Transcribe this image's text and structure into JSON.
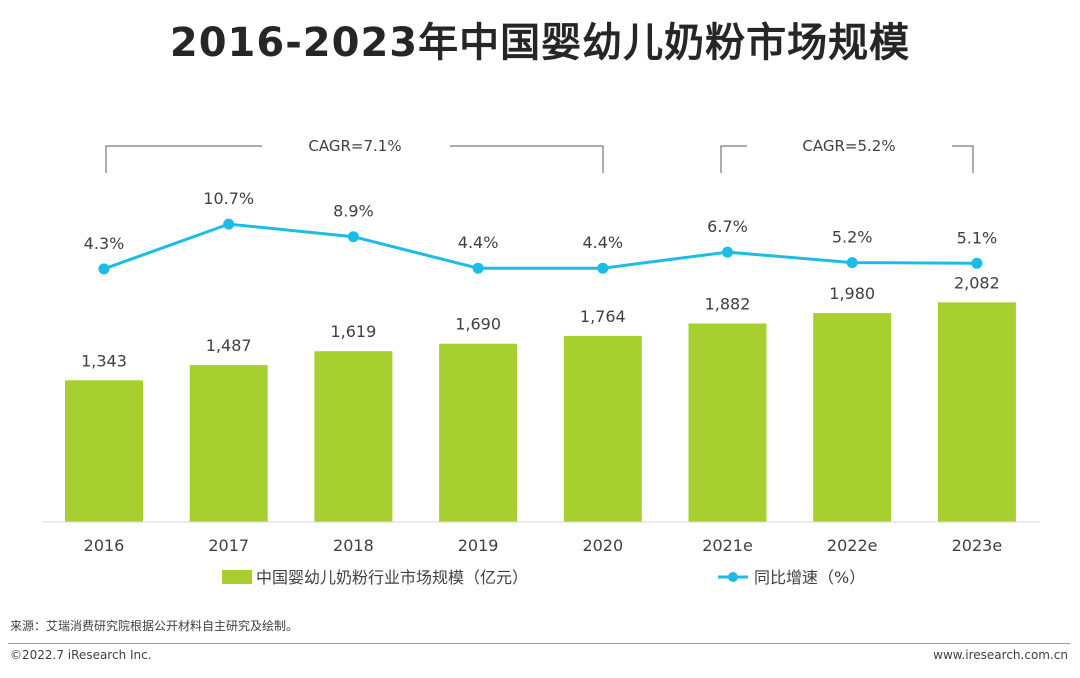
{
  "page": {
    "title": "2016-2023年中国婴幼儿奶粉市场规模",
    "source": "来源：艾瑞消费研究院根据公开材料自主研究及绘制。",
    "copyright": "©2022.7 iResearch Inc.",
    "website": "www.iresearch.com.cn"
  },
  "colors": {
    "bar": "#a6cf2f",
    "line": "#1bbde8",
    "axis": "#d9d9d9",
    "bracket": "#595959"
  },
  "chart_data": {
    "type": "bar",
    "title": "2016-2023年中国婴幼儿奶粉市场规模",
    "categories": [
      "2016",
      "2017",
      "2018",
      "2019",
      "2020",
      "2021e",
      "2022e",
      "2023e"
    ],
    "series": [
      {
        "name": "中国婴幼儿奶粉行业市场规模（亿元）",
        "type": "bar",
        "values": [
          1343,
          1487,
          1619,
          1690,
          1764,
          1882,
          1980,
          2082
        ],
        "labels": [
          "1,343",
          "1,487",
          "1,619",
          "1,690",
          "1,764",
          "1,882",
          "1,980",
          "2,082"
        ]
      },
      {
        "name": "同比增速（%）",
        "type": "line",
        "values": [
          4.3,
          10.7,
          8.9,
          4.4,
          4.4,
          6.7,
          5.2,
          5.1
        ],
        "labels": [
          "4.3%",
          "10.7%",
          "8.9%",
          "4.4%",
          "4.4%",
          "6.7%",
          "5.2%",
          "5.1%"
        ]
      }
    ],
    "annotations": [
      {
        "text": "CAGR=7.1%",
        "from": "2016",
        "to": "2020"
      },
      {
        "text": "CAGR=5.2%",
        "from": "2021e",
        "to": "2023e"
      }
    ],
    "legend_position": "bottom",
    "grid": false
  }
}
